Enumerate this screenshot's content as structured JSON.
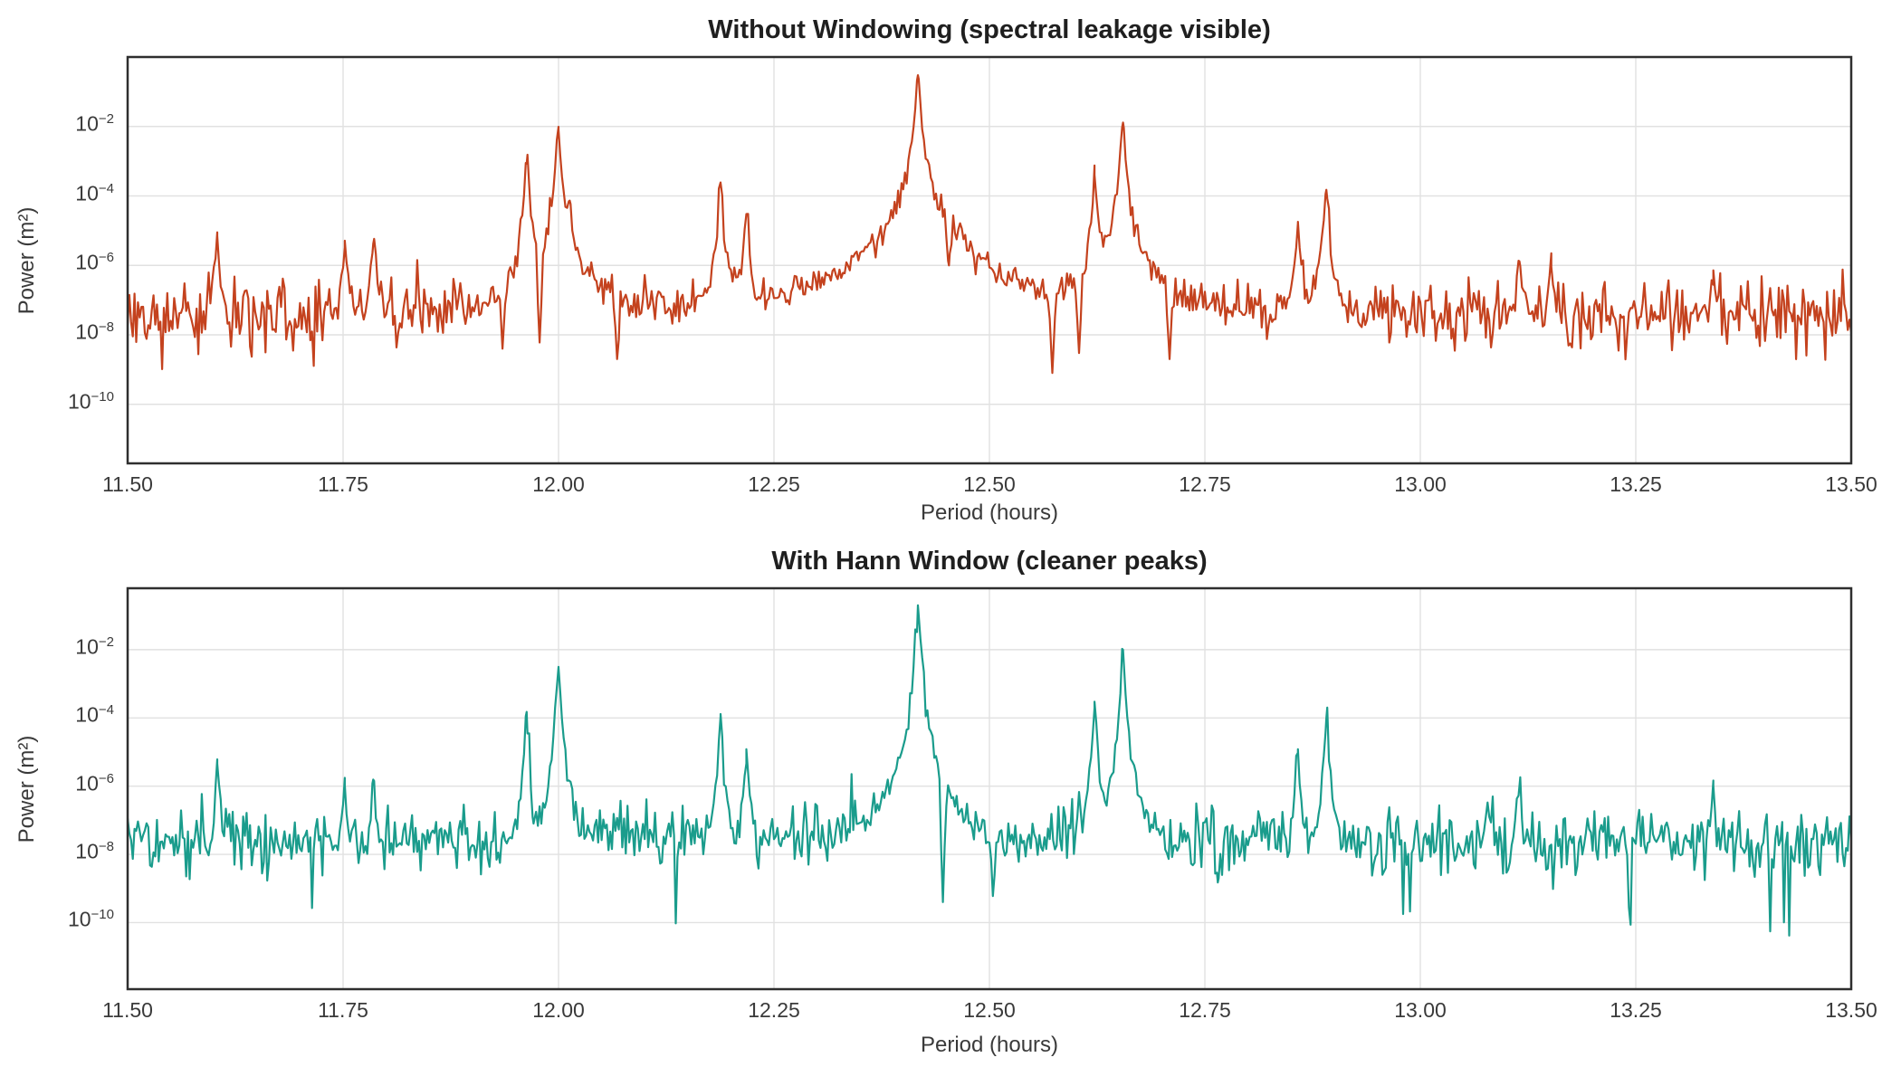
{
  "figure": {
    "background": "#ffffff",
    "text_color": "#3a3a3a",
    "title_color": "#1f1f1f",
    "grid_color": "#e1e1e1",
    "spine_color": "#2e2e2e"
  },
  "chart_data": [
    {
      "type": "line",
      "title": "Without Windowing (spectral leakage visible)",
      "xlabel": "Period (hours)",
      "ylabel": "Power (m²)",
      "line_color": "#c4421e",
      "grid": "on",
      "legend": "none",
      "xlim": [
        11.5,
        13.5
      ],
      "ylim_log10": [
        0,
        -11.7
      ],
      "xticks": [
        "11.50",
        "11.75",
        "12.00",
        "12.25",
        "12.50",
        "12.75",
        "13.00",
        "13.25",
        "13.50"
      ],
      "ytick_exponents": [
        -2,
        -4,
        -6,
        -8,
        -10
      ],
      "noise_floor": {
        "mean_log10": -7.4,
        "sigma_log10": 0.5,
        "deep_dip_prob": 0.03,
        "deep_dip_extra_decades": 1.6
      },
      "skirt": {
        "width_hours": 0.002,
        "falloff_exponent": 1.7
      },
      "peaks": [
        {
          "period": 11.604,
          "power": 7e-06
        },
        {
          "period": 11.752,
          "power": 5e-06
        },
        {
          "period": 11.785,
          "power": 4e-06
        },
        {
          "period": 11.963,
          "power": 0.00085
        },
        {
          "period": 12.0,
          "power": 0.008
        },
        {
          "period": 12.013,
          "power": 6e-05
        },
        {
          "period": 12.188,
          "power": 0.00024
        },
        {
          "period": 12.218,
          "power": 3e-05
        },
        {
          "period": 12.417,
          "power": 0.3
        },
        {
          "period": 12.622,
          "power": 0.0004
        },
        {
          "period": 12.655,
          "power": 0.013
        },
        {
          "period": 12.858,
          "power": 1.8e-05
        },
        {
          "period": 12.891,
          "power": 0.00015
        },
        {
          "period": 13.115,
          "power": 1.3e-06
        },
        {
          "period": 13.152,
          "power": 9e-07
        },
        {
          "period": 13.34,
          "power": 7e-07
        }
      ],
      "notches": [
        {
          "period": 11.935,
          "floor": 4e-09
        },
        {
          "period": 11.978,
          "floor": 6e-09
        },
        {
          "period": 12.068,
          "floor": 2e-09
        },
        {
          "period": 12.453,
          "floor": 1e-06
        },
        {
          "period": 12.573,
          "floor": 8e-10
        },
        {
          "period": 12.604,
          "floor": 3e-09
        },
        {
          "period": 12.709,
          "floor": 2e-09
        }
      ]
    },
    {
      "type": "line",
      "title": "With Hann Window (cleaner peaks)",
      "xlabel": "Period (hours)",
      "ylabel": "Power (m²)",
      "line_color": "#1a9c8c",
      "grid": "on",
      "legend": "none",
      "xlim": [
        11.5,
        13.5
      ],
      "ylim_log10": [
        -0.2,
        -11.95
      ],
      "xticks": [
        "11.50",
        "11.75",
        "12.00",
        "12.25",
        "12.50",
        "12.75",
        "13.00",
        "13.25",
        "13.50"
      ],
      "ytick_exponents": [
        -2,
        -4,
        -6,
        -8,
        -10
      ],
      "noise_floor": {
        "mean_log10": -7.55,
        "sigma_log10": 0.48,
        "deep_dip_prob": 0.035,
        "deep_dip_extra_decades": 1.6
      },
      "skirt": {
        "width_hours": 0.002,
        "falloff_exponent": 2.2
      },
      "peaks": [
        {
          "period": 11.604,
          "power": 4.5e-06
        },
        {
          "period": 11.752,
          "power": 1e-06
        },
        {
          "period": 11.785,
          "power": 1.5e-06
        },
        {
          "period": 11.963,
          "power": 0.00015
        },
        {
          "period": 12.0,
          "power": 0.003
        },
        {
          "period": 12.188,
          "power": 0.00013
        },
        {
          "period": 12.218,
          "power": 1.2e-05
        },
        {
          "period": 12.417,
          "power": 0.2
        },
        {
          "period": 12.622,
          "power": 0.0003
        },
        {
          "period": 12.655,
          "power": 0.01
        },
        {
          "period": 12.858,
          "power": 1.2e-05
        },
        {
          "period": 12.891,
          "power": 0.0001
        },
        {
          "period": 13.115,
          "power": 1e-06
        },
        {
          "period": 13.34,
          "power": 1e-06
        }
      ],
      "notches": [
        {
          "period": 11.971,
          "floor": 8e-08
        },
        {
          "period": 12.446,
          "floor": 4e-10
        },
        {
          "period": 12.504,
          "floor": 6e-10
        },
        {
          "period": 12.64,
          "floor": 2e-06
        },
        {
          "period": 12.765,
          "floor": 1.5e-09
        }
      ]
    }
  ]
}
